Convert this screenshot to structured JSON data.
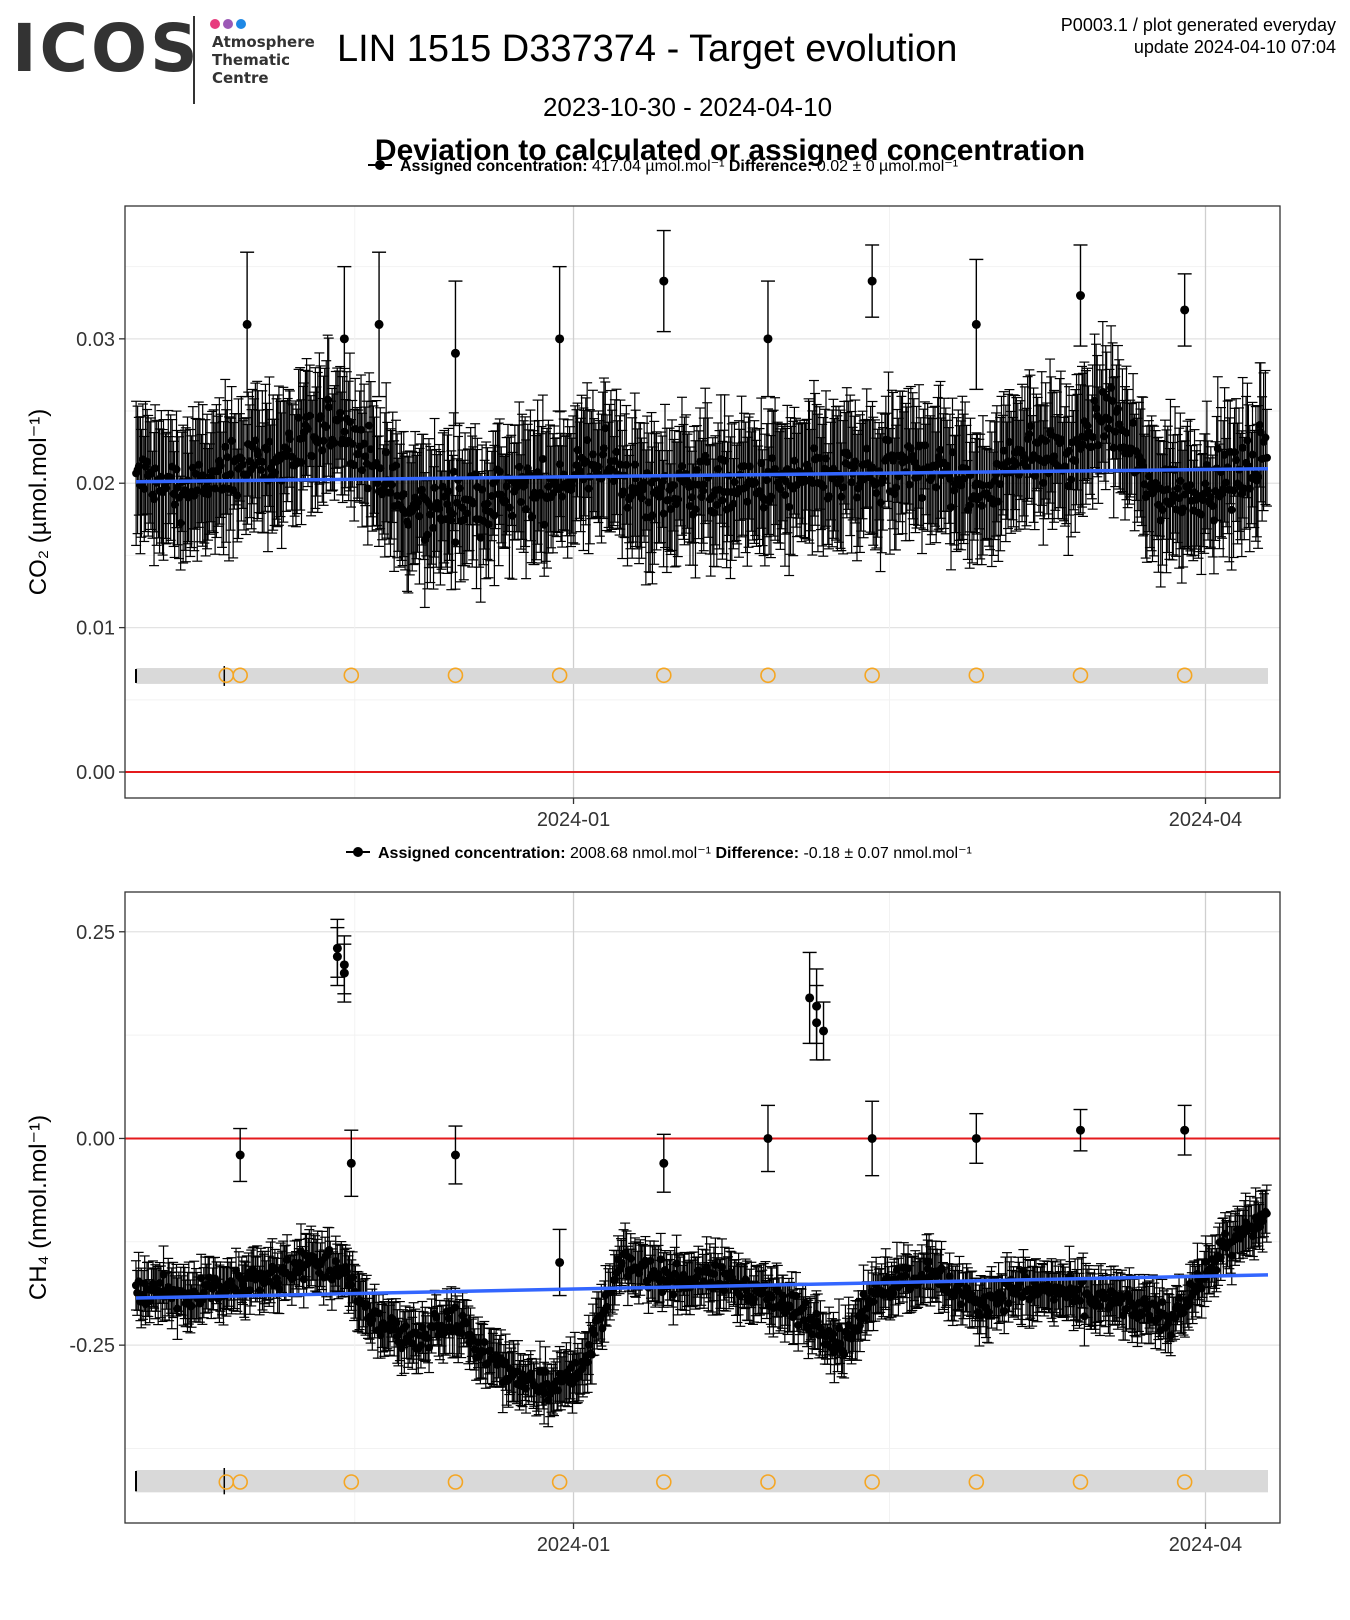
{
  "header": {
    "logo": "ICOS",
    "centre_lines": [
      "Atmosphere",
      "Thematic",
      "Centre"
    ],
    "logo_dot_colors": [
      "#e73c7e",
      "#9b59b6",
      "#1e88e5"
    ],
    "title": "LIN 1515 D337374 - Target evolution",
    "date_range": "2023-10-30 - 2024-04-10",
    "meta_line1": "P0003.1 / plot generated everyday",
    "meta_line2": "update  2024-04-10 07:04",
    "heading": "Deviation to calculated or assigned concentration"
  },
  "colors": {
    "trend": "#3366ff",
    "zero_line": "#e41a1c",
    "points": "#000000",
    "markers": "#f5a623",
    "band": "#d9d9d9"
  },
  "chart_data": [
    {
      "type": "scatter",
      "gas": "CO2",
      "ylabel": "CO₂ (µmol.mol⁻¹)",
      "legend": {
        "assigned_label": "Assigned concentration:",
        "assigned_value": "417.04 µmol.mol⁻¹",
        "difference_label": "Difference:",
        "difference_value": "0.02 ± 0 µmol.mol⁻¹"
      },
      "xlim": [
        "2023-10-30",
        "2024-04-10"
      ],
      "ylim": [
        -0.0018,
        0.0392
      ],
      "yticks": [
        0.0,
        0.01,
        0.02,
        0.03
      ],
      "ytick_labels": [
        "0.00",
        "0.01",
        "0.02",
        "0.03"
      ],
      "xticks": [
        "2024-01-01",
        "2024-04-01"
      ],
      "xtick_labels": [
        "2024-01",
        "2024-04"
      ],
      "trend": {
        "start": [
          "2023-10-30",
          0.0201
        ],
        "end": [
          "2024-04-10",
          0.021
        ]
      },
      "zero_line": 0.0,
      "calibration_dates": [
        "2023-11-12",
        "2023-11-14",
        "2023-11-30",
        "2023-12-15",
        "2023-12-30",
        "2024-01-14",
        "2024-01-29",
        "2024-02-13",
        "2024-02-28",
        "2024-03-14",
        "2024-03-29"
      ],
      "marker_y": 0.0067,
      "band": [
        0.0061,
        0.0072
      ],
      "outliers": [
        {
          "x": "2023-11-15",
          "y": 0.031,
          "err": 0.005
        },
        {
          "x": "2023-11-29",
          "y": 0.03,
          "err": 0.005
        },
        {
          "x": "2023-12-04",
          "y": 0.031,
          "err": 0.005
        },
        {
          "x": "2023-12-15",
          "y": 0.029,
          "err": 0.005
        },
        {
          "x": "2023-12-30",
          "y": 0.03,
          "err": 0.005
        },
        {
          "x": "2024-01-14",
          "y": 0.034,
          "err": 0.0035
        },
        {
          "x": "2024-01-29",
          "y": 0.03,
          "err": 0.004
        },
        {
          "x": "2024-02-13",
          "y": 0.034,
          "err": 0.0025
        },
        {
          "x": "2024-02-28",
          "y": 0.031,
          "err": 0.0045
        },
        {
          "x": "2024-03-14",
          "y": 0.033,
          "err": 0.0035
        },
        {
          "x": "2024-03-29",
          "y": 0.032,
          "err": 0.0025
        }
      ],
      "bulk_profile": [
        [
          "2023-10-30",
          0.0205
        ],
        [
          "2023-11-05",
          0.0195
        ],
        [
          "2023-11-10",
          0.02
        ],
        [
          "2023-11-15",
          0.0215
        ],
        [
          "2023-11-22",
          0.022
        ],
        [
          "2023-11-28",
          0.024
        ],
        [
          "2023-12-03",
          0.0215
        ],
        [
          "2023-12-08",
          0.018
        ],
        [
          "2023-12-15",
          0.0185
        ],
        [
          "2023-12-22",
          0.019
        ],
        [
          "2023-12-30",
          0.02
        ],
        [
          "2024-01-05",
          0.0215
        ],
        [
          "2024-01-12",
          0.019
        ],
        [
          "2024-01-18",
          0.02
        ],
        [
          "2024-01-25",
          0.0195
        ],
        [
          "2024-02-01",
          0.02
        ],
        [
          "2024-02-08",
          0.0205
        ],
        [
          "2024-02-15",
          0.0205
        ],
        [
          "2024-02-22",
          0.0215
        ],
        [
          "2024-02-28",
          0.019
        ],
        [
          "2024-03-06",
          0.0225
        ],
        [
          "2024-03-12",
          0.0215
        ],
        [
          "2024-03-18",
          0.025
        ],
        [
          "2024-03-24",
          0.0195
        ],
        [
          "2024-03-31",
          0.0195
        ],
        [
          "2024-04-06",
          0.0205
        ],
        [
          "2024-04-10",
          0.0225
        ]
      ],
      "bulk_spread": 0.003,
      "bulk_err": 0.004
    },
    {
      "type": "scatter",
      "gas": "CH4",
      "ylabel": "CH₄ (nmol.mol⁻¹)",
      "legend": {
        "assigned_label": "Assigned concentration:",
        "assigned_value": "2008.68 nmol.mol⁻¹",
        "difference_label": "Difference:",
        "difference_value": "-0.18 ± 0.07 nmol.mol⁻¹"
      },
      "xlim": [
        "2023-10-30",
        "2024-04-10"
      ],
      "ylim": [
        -0.4651,
        0.2981
      ],
      "yticks": [
        -0.25,
        0.0,
        0.25
      ],
      "ytick_labels": [
        "-0.25",
        "0.00",
        "0.25"
      ],
      "xticks": [
        "2024-01-01",
        "2024-04-01"
      ],
      "xtick_labels": [
        "2024-01",
        "2024-04"
      ],
      "trend": {
        "start": [
          "2023-10-30",
          -0.193
        ],
        "end": [
          "2024-04-10",
          -0.165
        ]
      },
      "zero_line": 0.0,
      "calibration_dates": [
        "2023-11-12",
        "2023-11-14",
        "2023-11-30",
        "2023-12-15",
        "2023-12-30",
        "2024-01-14",
        "2024-01-29",
        "2024-02-13",
        "2024-02-28",
        "2024-03-14",
        "2024-03-29"
      ],
      "marker_y": -0.4155,
      "band": [
        -0.428,
        -0.401
      ],
      "outliers": [
        {
          "x": "2023-11-14",
          "y": -0.02,
          "err": 0.032
        },
        {
          "x": "2023-11-28",
          "y": 0.23,
          "err": 0.035
        },
        {
          "x": "2023-11-28",
          "y": 0.22,
          "err": 0.035
        },
        {
          "x": "2023-11-29",
          "y": 0.21,
          "err": 0.035
        },
        {
          "x": "2023-11-29",
          "y": 0.2,
          "err": 0.035
        },
        {
          "x": "2023-11-30",
          "y": -0.03,
          "err": 0.04
        },
        {
          "x": "2023-12-15",
          "y": -0.02,
          "err": 0.035
        },
        {
          "x": "2023-12-30",
          "y": -0.15,
          "err": 0.04
        },
        {
          "x": "2024-01-14",
          "y": -0.03,
          "err": 0.035
        },
        {
          "x": "2024-01-29",
          "y": 0.0,
          "err": 0.04
        },
        {
          "x": "2024-02-04",
          "y": 0.17,
          "err": 0.055
        },
        {
          "x": "2024-02-05",
          "y": 0.14,
          "err": 0.045
        },
        {
          "x": "2024-02-05",
          "y": 0.16,
          "err": 0.045
        },
        {
          "x": "2024-02-06",
          "y": 0.13,
          "err": 0.035
        },
        {
          "x": "2024-02-13",
          "y": 0.0,
          "err": 0.045
        },
        {
          "x": "2024-02-28",
          "y": 0.0,
          "err": 0.03
        },
        {
          "x": "2024-03-14",
          "y": 0.01,
          "err": 0.025
        },
        {
          "x": "2024-03-29",
          "y": 0.01,
          "err": 0.03
        }
      ],
      "bulk_profile": [
        [
          "2023-10-30",
          -0.18
        ],
        [
          "2023-11-05",
          -0.19
        ],
        [
          "2023-11-12",
          -0.18
        ],
        [
          "2023-11-18",
          -0.17
        ],
        [
          "2023-11-24",
          -0.15
        ],
        [
          "2023-11-29",
          -0.16
        ],
        [
          "2023-12-01",
          -0.2
        ],
        [
          "2023-12-05",
          -0.23
        ],
        [
          "2023-12-10",
          -0.24
        ],
        [
          "2023-12-15",
          -0.22
        ],
        [
          "2023-12-19",
          -0.26
        ],
        [
          "2023-12-24",
          -0.29
        ],
        [
          "2023-12-30",
          -0.3
        ],
        [
          "2024-01-03",
          -0.26
        ],
        [
          "2024-01-08",
          -0.15
        ],
        [
          "2024-01-15",
          -0.17
        ],
        [
          "2024-01-22",
          -0.17
        ],
        [
          "2024-01-29",
          -0.19
        ],
        [
          "2024-02-04",
          -0.22
        ],
        [
          "2024-02-09",
          -0.25
        ],
        [
          "2024-02-14",
          -0.18
        ],
        [
          "2024-02-21",
          -0.16
        ],
        [
          "2024-02-28",
          -0.2
        ],
        [
          "2024-03-06",
          -0.18
        ],
        [
          "2024-03-13",
          -0.19
        ],
        [
          "2024-03-20",
          -0.2
        ],
        [
          "2024-03-27",
          -0.22
        ],
        [
          "2024-04-03",
          -0.14
        ],
        [
          "2024-04-10",
          -0.09
        ]
      ],
      "bulk_spread": 0.025,
      "bulk_err": 0.03
    }
  ]
}
